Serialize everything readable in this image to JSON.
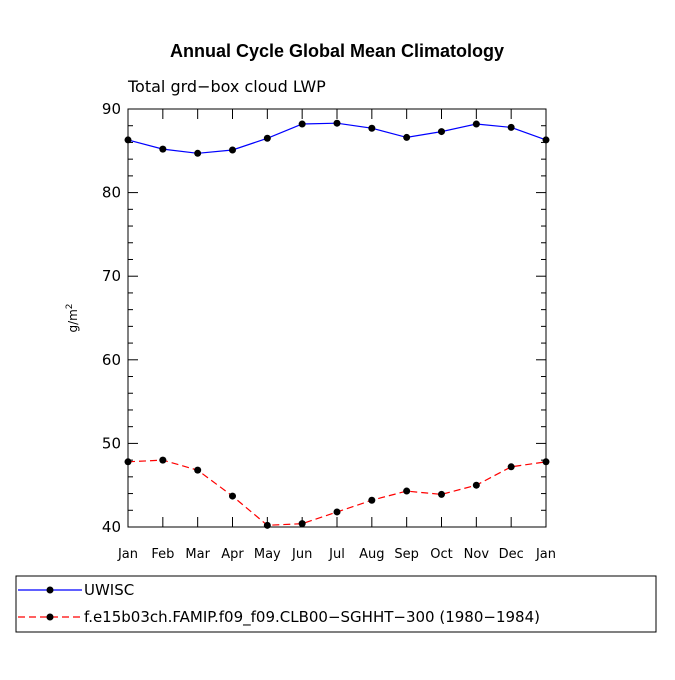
{
  "chart_data": {
    "type": "line",
    "title": "Annual Cycle Global Mean Climatology",
    "subtitle": "Total grd−box cloud LWP",
    "xlabel": "",
    "ylabel": "g/m",
    "ylabel_superscript": "2",
    "categories": [
      "Jan",
      "Feb",
      "Mar",
      "Apr",
      "May",
      "Jun",
      "Jul",
      "Aug",
      "Sep",
      "Oct",
      "Nov",
      "Dec",
      "Jan"
    ],
    "ylim": [
      40,
      90
    ],
    "yticks": [
      40,
      50,
      60,
      70,
      80,
      90
    ],
    "series": [
      {
        "name": "UWISC",
        "color": "#0000ff",
        "style": "solid",
        "values": [
          86.3,
          85.2,
          84.7,
          85.1,
          86.5,
          88.2,
          88.3,
          87.7,
          86.6,
          87.3,
          88.2,
          87.8,
          86.3
        ]
      },
      {
        "name": "f.e15b03ch.FAMIP.f09_f09.CLB00−SGHHT−300 (1980−1984)",
        "color": "#ff0000",
        "style": "dashed",
        "values": [
          47.8,
          48.0,
          46.8,
          43.7,
          40.2,
          40.4,
          41.8,
          43.2,
          44.3,
          43.9,
          45.0,
          47.2,
          47.8
        ]
      }
    ],
    "legend": "bottom"
  }
}
